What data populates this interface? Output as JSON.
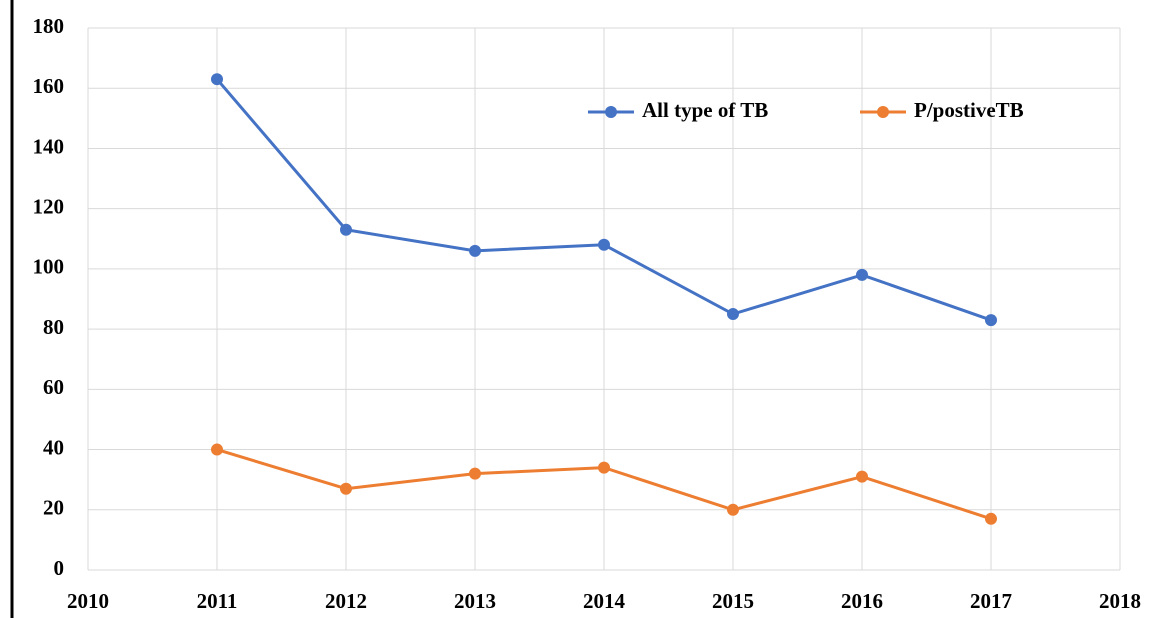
{
  "chart_data": {
    "type": "line",
    "x": [
      2011,
      2012,
      2013,
      2014,
      2015,
      2016,
      2017
    ],
    "series": [
      {
        "name": "All type of TB",
        "color": "#4472c4",
        "values": [
          163,
          113,
          106,
          108,
          85,
          98,
          83
        ]
      },
      {
        "name": "P/postiveTB",
        "color": "#ed7d31",
        "values": [
          40,
          27,
          32,
          34,
          20,
          31,
          17
        ]
      }
    ],
    "xlim": [
      2010,
      2018
    ],
    "xticks": [
      2010,
      2011,
      2012,
      2013,
      2014,
      2015,
      2016,
      2017,
      2018
    ],
    "ylim": [
      0,
      180
    ],
    "yticks": [
      0,
      20,
      40,
      60,
      80,
      100,
      120,
      140,
      160,
      180
    ],
    "grid": true,
    "legend": "top-right"
  }
}
